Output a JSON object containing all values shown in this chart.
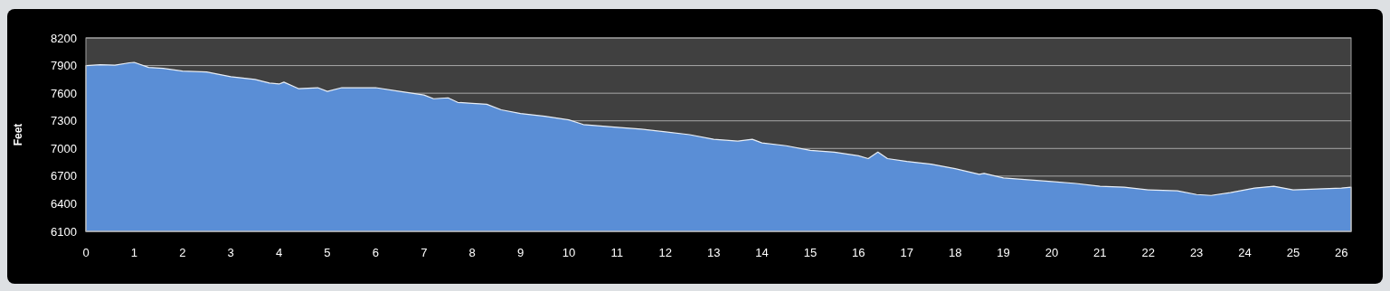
{
  "chart_data": {
    "type": "area",
    "ylabel": "Feet",
    "x": [
      0,
      0.3,
      0.6,
      0.9,
      1.0,
      1.3,
      1.6,
      2,
      2.5,
      3,
      3.5,
      3.8,
      4.0,
      4.1,
      4.4,
      4.8,
      5.0,
      5.3,
      5.8,
      6.0,
      6.5,
      7.0,
      7.2,
      7.5,
      7.7,
      8.0,
      8.3,
      8.6,
      9.0,
      9.5,
      10.0,
      10.3,
      11.0,
      11.5,
      12.0,
      12.5,
      13.0,
      13.5,
      13.8,
      14.0,
      14.5,
      15.0,
      15.5,
      16.0,
      16.2,
      16.4,
      16.6,
      17.0,
      17.5,
      18.0,
      18.5,
      18.6,
      19.0,
      20.0,
      20.5,
      21.0,
      21.5,
      22.0,
      22.6,
      23.0,
      23.3,
      23.7,
      24.2,
      24.6,
      24.8,
      25.0,
      25.5,
      26.0,
      26.2
    ],
    "series": [
      {
        "color": "#5a8ed6",
        "values": [
          7900,
          7910,
          7905,
          7930,
          7935,
          7880,
          7870,
          7840,
          7830,
          7780,
          7750,
          7710,
          7700,
          7720,
          7650,
          7660,
          7620,
          7660,
          7660,
          7660,
          7620,
          7580,
          7540,
          7550,
          7500,
          7490,
          7480,
          7420,
          7380,
          7350,
          7310,
          7260,
          7230,
          7210,
          7180,
          7150,
          7100,
          7080,
          7100,
          7060,
          7030,
          6980,
          6960,
          6920,
          6890,
          6960,
          6890,
          6860,
          6830,
          6780,
          6720,
          6730,
          6680,
          6640,
          6620,
          6590,
          6580,
          6550,
          6540,
          6500,
          6490,
          6520,
          6570,
          6590,
          6570,
          6550,
          6560,
          6570,
          6580
        ]
      }
    ],
    "xlim": [
      0,
      26.2
    ],
    "xticks": [
      0,
      1,
      2,
      3,
      4,
      5,
      6,
      7,
      8,
      9,
      10,
      11,
      12,
      13,
      14,
      15,
      16,
      17,
      18,
      19,
      20,
      21,
      22,
      23,
      24,
      25,
      26
    ],
    "ylim": [
      6100,
      8200
    ],
    "yticks": [
      6100,
      6400,
      6700,
      7000,
      7300,
      7600,
      7900,
      8200
    ],
    "grid": "y"
  }
}
